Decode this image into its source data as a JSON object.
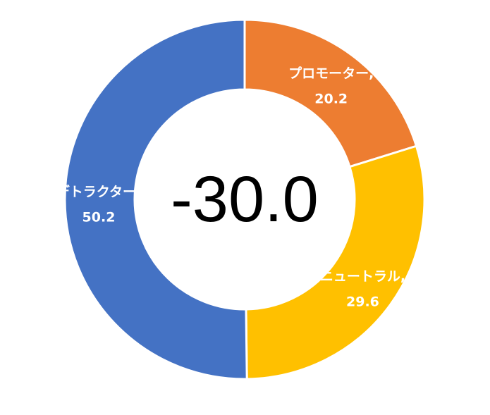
{
  "chart_data": {
    "type": "pie",
    "variant": "donut",
    "center_label": "-30.0",
    "categories": [
      "プロモーター",
      "ニュートラル",
      "デトラクター"
    ],
    "values": [
      20.2,
      29.6,
      50.2
    ],
    "colors": [
      "#ED7D31",
      "#FFC000",
      "#4472C4"
    ],
    "data_labels": [
      {
        "name": "プロモーター,",
        "value": "20.2"
      },
      {
        "name": "ニュートラル,",
        "value": "29.6"
      },
      {
        "name": "デトラクター,",
        "value": "50.2"
      }
    ],
    "legend": "none"
  }
}
